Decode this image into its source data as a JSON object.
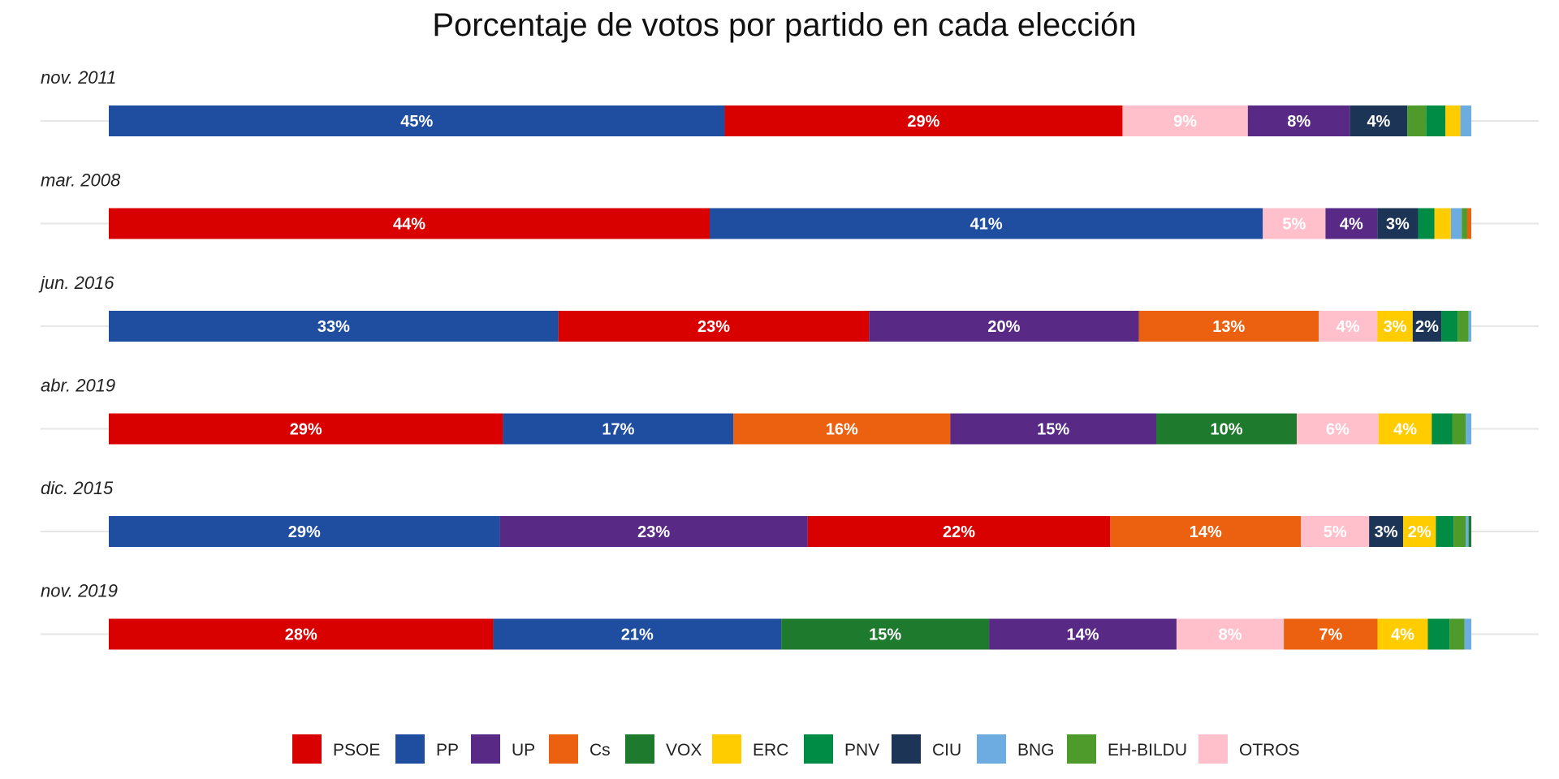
{
  "chart_data": {
    "type": "bar",
    "orientation": "horizontal",
    "stacked": true,
    "title": "Porcentaje de votos por partido en cada elección",
    "xlabel": "",
    "ylabel": "",
    "xlim": [
      0,
      100
    ],
    "grid": false,
    "legend_position": "bottom",
    "parties": [
      {
        "name": "PSOE",
        "color": "#D90000"
      },
      {
        "name": "PP",
        "color": "#1F4EA1"
      },
      {
        "name": "UP",
        "color": "#582A86"
      },
      {
        "name": "Cs",
        "color": "#EB610F"
      },
      {
        "name": "VOX",
        "color": "#1E7B2E"
      },
      {
        "name": "ERC",
        "color": "#FFCC00"
      },
      {
        "name": "PNV",
        "color": "#008C45"
      },
      {
        "name": "CIU",
        "color": "#1C3557"
      },
      {
        "name": "BNG",
        "color": "#6CACE0"
      },
      {
        "name": "EH-BILDU",
        "color": "#4E9A2A"
      },
      {
        "name": "OTROS",
        "color": "#FFC0CB"
      }
    ],
    "elections": [
      {
        "name": "nov. 2011",
        "segments": [
          {
            "party": "PP",
            "value": 45.2,
            "label": "45%",
            "label_color": "#ffffff"
          },
          {
            "party": "PSOE",
            "value": 29.2,
            "label": "29%",
            "label_color": "#ffffff"
          },
          {
            "party": "OTROS",
            "value": 9.2,
            "label": "9%",
            "label_color": "#ffffff"
          },
          {
            "party": "UP",
            "value": 7.5,
            "label": "8%",
            "label_color": "#ffffff"
          },
          {
            "party": "CIU",
            "value": 4.2,
            "label": "4%",
            "label_color": "#ffffff"
          },
          {
            "party": "EH-BILDU",
            "value": 1.4,
            "label": "",
            "label_color": "#ffffff"
          },
          {
            "party": "PNV",
            "value": 1.4,
            "label": "",
            "label_color": "#ffffff"
          },
          {
            "party": "ERC",
            "value": 1.1,
            "label": "",
            "label_color": "#ffffff"
          },
          {
            "party": "BNG",
            "value": 0.8,
            "label": "",
            "label_color": "#ffffff"
          }
        ]
      },
      {
        "name": "mar. 2008",
        "segments": [
          {
            "party": "PSOE",
            "value": 44.1,
            "label": "44%",
            "label_color": "#ffffff"
          },
          {
            "party": "PP",
            "value": 40.6,
            "label": "41%",
            "label_color": "#ffffff"
          },
          {
            "party": "OTROS",
            "value": 4.6,
            "label": "5%",
            "label_color": "#ffffff"
          },
          {
            "party": "UP",
            "value": 3.8,
            "label": "4%",
            "label_color": "#ffffff"
          },
          {
            "party": "CIU",
            "value": 3.0,
            "label": "3%",
            "label_color": "#ffffff"
          },
          {
            "party": "PNV",
            "value": 1.2,
            "label": "",
            "label_color": "#ffffff"
          },
          {
            "party": "ERC",
            "value": 1.2,
            "label": "",
            "label_color": "#ffffff"
          },
          {
            "party": "BNG",
            "value": 0.8,
            "label": "",
            "label_color": "#ffffff"
          },
          {
            "party": "EH-BILDU",
            "value": 0.4,
            "label": "",
            "label_color": "#ffffff"
          },
          {
            "party": "Cs",
            "value": 0.3,
            "label": "",
            "label_color": "#ffffff"
          }
        ]
      },
      {
        "name": "jun. 2016",
        "segments": [
          {
            "party": "PP",
            "value": 33.0,
            "label": "33%",
            "label_color": "#ffffff"
          },
          {
            "party": "PSOE",
            "value": 22.8,
            "label": "23%",
            "label_color": "#ffffff"
          },
          {
            "party": "UP",
            "value": 19.8,
            "label": "20%",
            "label_color": "#ffffff"
          },
          {
            "party": "Cs",
            "value": 13.2,
            "label": "13%",
            "label_color": "#ffffff"
          },
          {
            "party": "OTROS",
            "value": 4.3,
            "label": "4%",
            "label_color": "#ffffff"
          },
          {
            "party": "ERC",
            "value": 2.6,
            "label": "3%",
            "label_color": "#ffffff"
          },
          {
            "party": "CIU",
            "value": 2.1,
            "label": "2%",
            "label_color": "#ffffff"
          },
          {
            "party": "PNV",
            "value": 1.2,
            "label": "",
            "label_color": "#ffffff"
          },
          {
            "party": "EH-BILDU",
            "value": 0.8,
            "label": "",
            "label_color": "#ffffff"
          },
          {
            "party": "BNG",
            "value": 0.2,
            "label": "",
            "label_color": "#ffffff"
          }
        ]
      },
      {
        "name": "abr. 2019",
        "segments": [
          {
            "party": "PSOE",
            "value": 28.9,
            "label": "29%",
            "label_color": "#ffffff"
          },
          {
            "party": "PP",
            "value": 16.9,
            "label": "17%",
            "label_color": "#ffffff"
          },
          {
            "party": "Cs",
            "value": 15.9,
            "label": "16%",
            "label_color": "#ffffff"
          },
          {
            "party": "UP",
            "value": 15.1,
            "label": "15%",
            "label_color": "#ffffff"
          },
          {
            "party": "VOX",
            "value": 10.3,
            "label": "10%",
            "label_color": "#ffffff"
          },
          {
            "party": "OTROS",
            "value": 6.0,
            "label": "6%",
            "label_color": "#ffffff"
          },
          {
            "party": "ERC",
            "value": 3.9,
            "label": "4%",
            "label_color": "#ffffff"
          },
          {
            "party": "PNV",
            "value": 1.5,
            "label": "",
            "label_color": "#ffffff"
          },
          {
            "party": "EH-BILDU",
            "value": 1.0,
            "label": "",
            "label_color": "#ffffff"
          },
          {
            "party": "BNG",
            "value": 0.4,
            "label": "",
            "label_color": "#ffffff"
          }
        ]
      },
      {
        "name": "dic. 2015",
        "segments": [
          {
            "party": "PP",
            "value": 28.7,
            "label": "29%",
            "label_color": "#ffffff"
          },
          {
            "party": "UP",
            "value": 22.6,
            "label": "23%",
            "label_color": "#ffffff"
          },
          {
            "party": "PSOE",
            "value": 22.2,
            "label": "22%",
            "label_color": "#ffffff"
          },
          {
            "party": "Cs",
            "value": 14.0,
            "label": "14%",
            "label_color": "#ffffff"
          },
          {
            "party": "OTROS",
            "value": 5.0,
            "label": "5%",
            "label_color": "#ffffff"
          },
          {
            "party": "CIU",
            "value": 2.5,
            "label": "3%",
            "label_color": "#ffffff"
          },
          {
            "party": "ERC",
            "value": 2.4,
            "label": "2%",
            "label_color": "#ffffff"
          },
          {
            "party": "PNV",
            "value": 1.3,
            "label": "",
            "label_color": "#ffffff"
          },
          {
            "party": "EH-BILDU",
            "value": 0.9,
            "label": "",
            "label_color": "#ffffff"
          },
          {
            "party": "BNG",
            "value": 0.2,
            "label": "",
            "label_color": "#ffffff"
          },
          {
            "party": "VOX",
            "value": 0.2,
            "label": "",
            "label_color": "#ffffff"
          }
        ]
      },
      {
        "name": "nov. 2019",
        "segments": [
          {
            "party": "PSOE",
            "value": 28.3,
            "label": "28%",
            "label_color": "#ffffff"
          },
          {
            "party": "PP",
            "value": 21.2,
            "label": "21%",
            "label_color": "#ffffff"
          },
          {
            "party": "VOX",
            "value": 15.3,
            "label": "15%",
            "label_color": "#ffffff"
          },
          {
            "party": "UP",
            "value": 13.8,
            "label": "14%",
            "label_color": "#ffffff"
          },
          {
            "party": "OTROS",
            "value": 7.9,
            "label": "8%",
            "label_color": "#ffffff"
          },
          {
            "party": "Cs",
            "value": 6.9,
            "label": "7%",
            "label_color": "#ffffff"
          },
          {
            "party": "ERC",
            "value": 3.7,
            "label": "4%",
            "label_color": "#ffffff"
          },
          {
            "party": "PNV",
            "value": 1.6,
            "label": "",
            "label_color": "#ffffff"
          },
          {
            "party": "EH-BILDU",
            "value": 1.1,
            "label": "",
            "label_color": "#ffffff"
          },
          {
            "party": "BNG",
            "value": 0.5,
            "label": "",
            "label_color": "#ffffff"
          }
        ]
      }
    ]
  }
}
